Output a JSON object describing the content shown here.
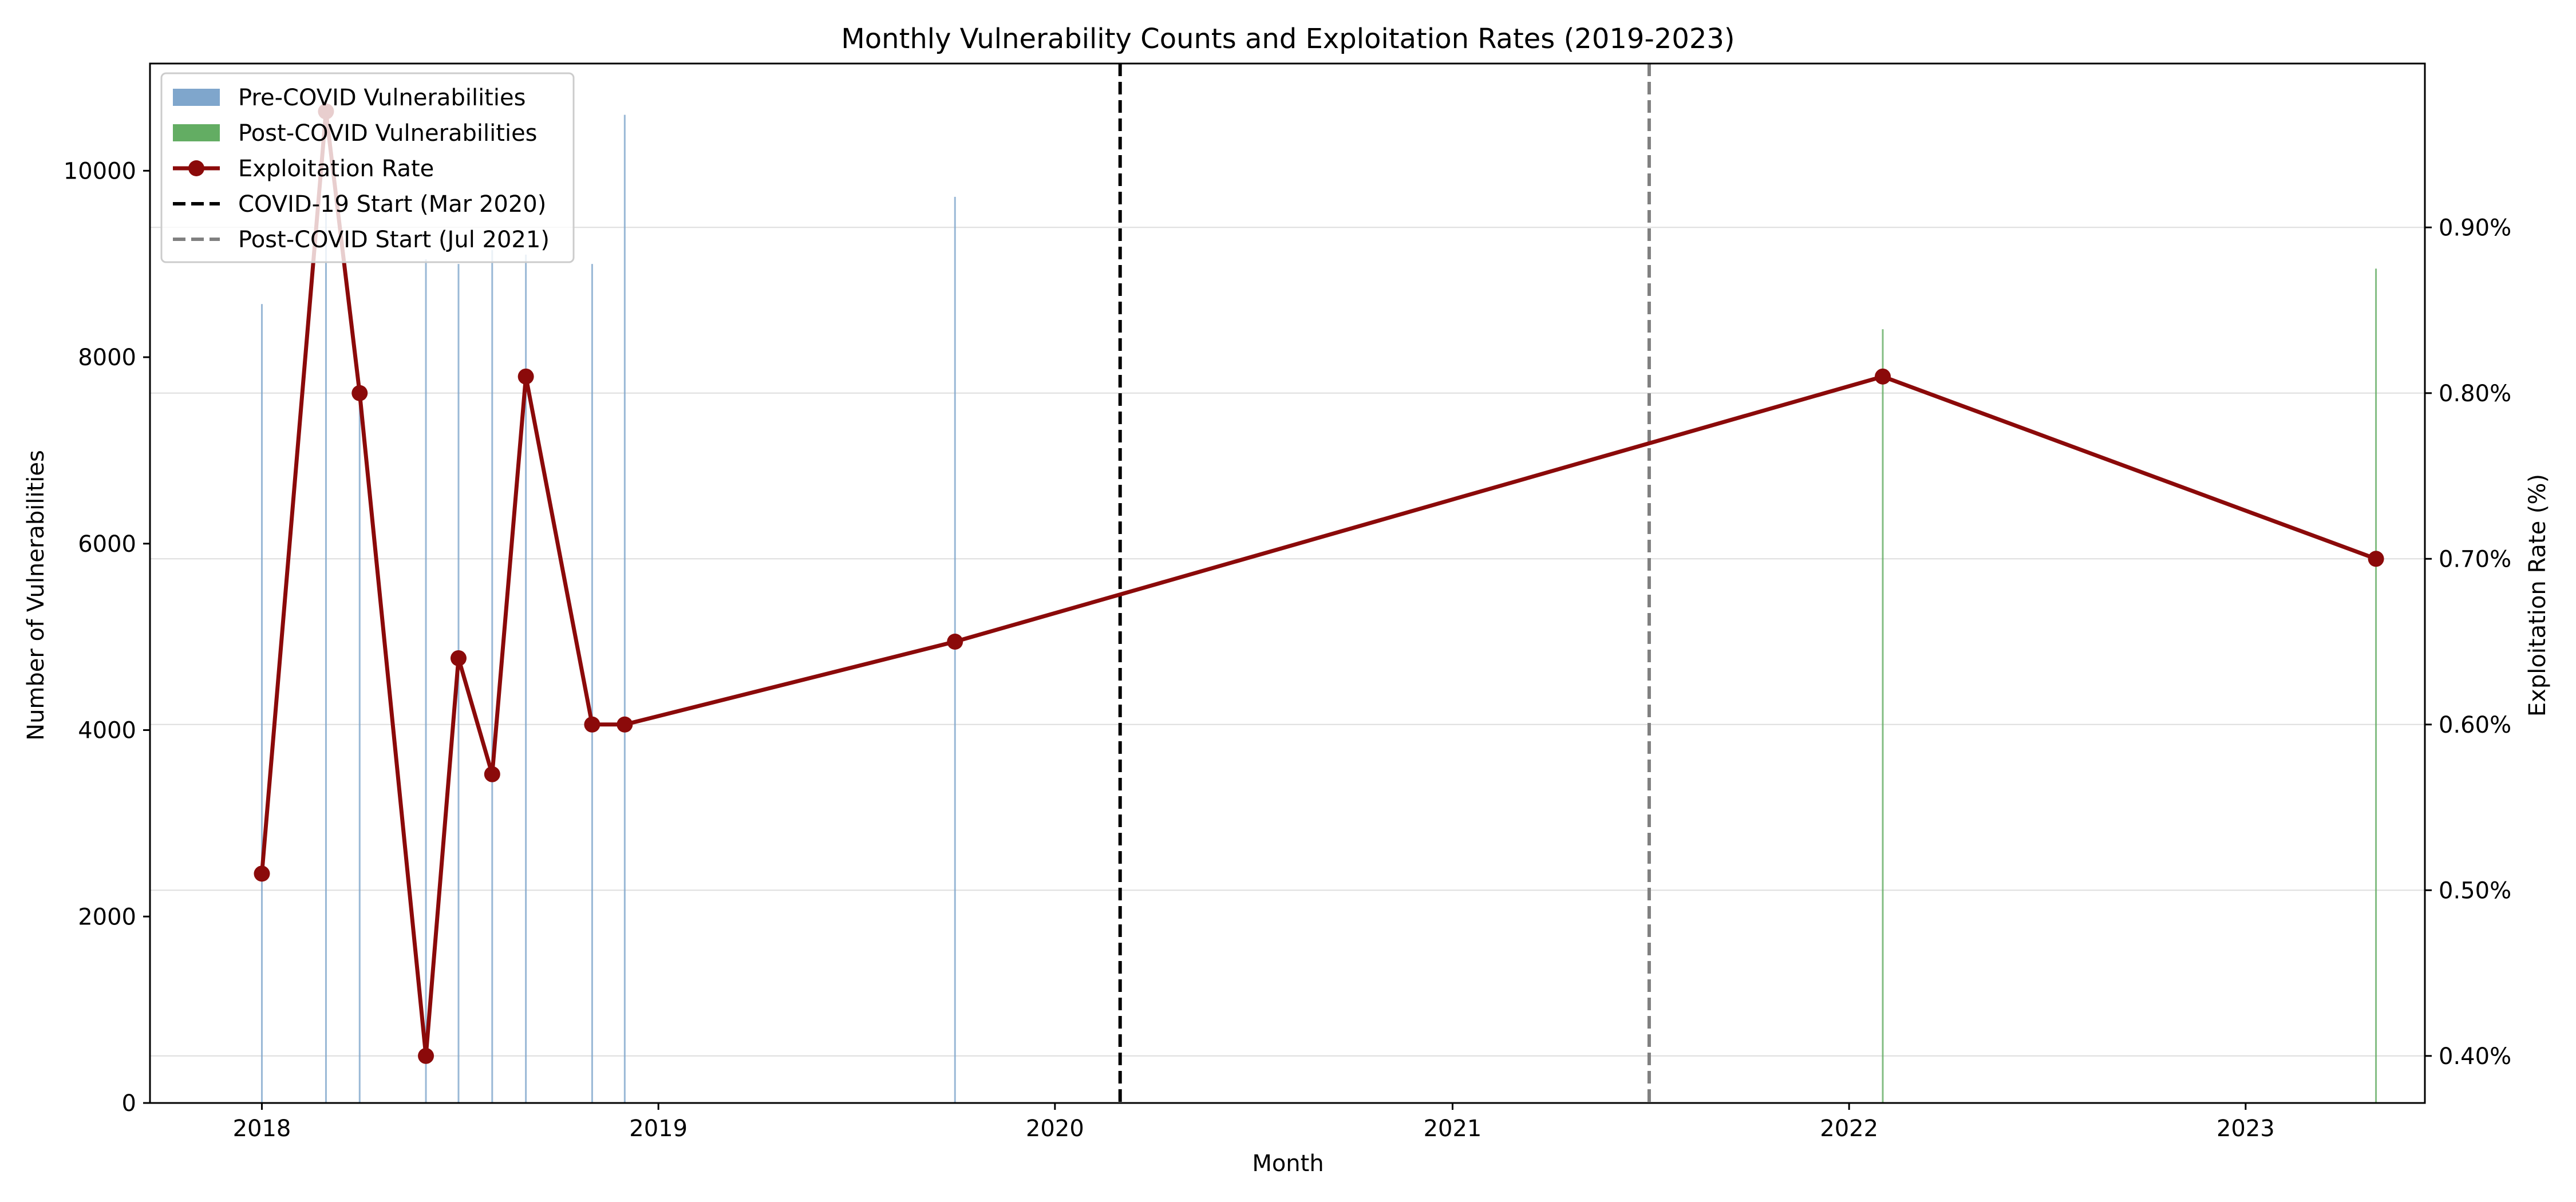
{
  "chart_data": {
    "type": "bar",
    "title": "Monthly Vulnerability Counts and Exploitation Rates (2019-2023)",
    "xlabel": "Month",
    "ylabel": "Number of Vulnerabilities",
    "y2label": "Exploitation Rate (%)",
    "xlim": [
      "2017-09-20",
      "2023-06-15"
    ],
    "ylim": [
      0,
      11150
    ],
    "y2lim": [
      0.3716,
      0.9989
    ],
    "x_ticks": [
      "2018-01-01",
      "2019-01-01",
      "2020-01-01",
      "2021-01-01",
      "2022-01-01",
      "2023-01-01"
    ],
    "x_tick_labels": [
      "2018",
      "2019",
      "2020",
      "2021",
      "2022",
      "2023"
    ],
    "y_ticks": [
      0,
      2000,
      4000,
      6000,
      8000,
      10000
    ],
    "y_tick_labels": [
      "0",
      "2000",
      "4000",
      "6000",
      "8000",
      "10000"
    ],
    "y2_ticks": [
      0.4,
      0.5,
      0.6,
      0.7,
      0.8,
      0.9
    ],
    "y2_tick_labels": [
      "0.40%",
      "0.50%",
      "0.60%",
      "0.70%",
      "0.80%",
      "0.90%"
    ],
    "grid": true,
    "legend_position": "top-left",
    "legend": [
      {
        "label": "Pre-COVID Vulnerabilities",
        "kind": "patch",
        "color": "#7fa6cc"
      },
      {
        "label": "Post-COVID Vulnerabilities",
        "kind": "patch",
        "color": "#63ad63"
      },
      {
        "label": "Exploitation Rate",
        "kind": "line-marker",
        "color": "#8b0a0a"
      },
      {
        "label": "COVID-19 Start (Mar 2020)",
        "kind": "dashed",
        "color": "#000000"
      },
      {
        "label": "Post-COVID Start (Jul 2021)",
        "kind": "dashed",
        "color": "#808080"
      }
    ],
    "series": [
      {
        "name": "Pre-COVID Vulnerabilities",
        "kind": "bar",
        "axis": "left",
        "color": "#7fa6cc",
        "x": [
          "2018-01-01",
          "2018-03-01",
          "2018-04-01",
          "2018-06-01",
          "2018-07-01",
          "2018-08-01",
          "2018-09-01",
          "2018-11-01",
          "2018-12-01",
          "2019-10-01"
        ],
        "values": [
          8570,
          9570,
          7600,
          9050,
          9000,
          9150,
          9100,
          9000,
          10600,
          9720
        ]
      },
      {
        "name": "Post-COVID Vulnerabilities",
        "kind": "bar",
        "axis": "left",
        "color": "#63ad63",
        "x": [
          "2022-02-01",
          "2023-05-01"
        ],
        "values": [
          8300,
          8950
        ]
      },
      {
        "name": "Exploitation Rate",
        "kind": "line",
        "axis": "right",
        "color": "#8b0a0a",
        "x": [
          "2018-01-01",
          "2018-03-01",
          "2018-04-01",
          "2018-06-01",
          "2018-07-01",
          "2018-08-01",
          "2018-09-01",
          "2018-11-01",
          "2018-12-01",
          "2019-10-01",
          "2022-02-01",
          "2023-05-01"
        ],
        "values": [
          0.51,
          0.97,
          0.8,
          0.4,
          0.64,
          0.57,
          0.81,
          0.6,
          0.6,
          0.65,
          0.81,
          0.7
        ]
      }
    ],
    "vlines": [
      {
        "label": "COVID-19 Start (Mar 2020)",
        "x": "2020-03-01",
        "color": "#000000"
      },
      {
        "label": "Post-COVID Start (Jul 2021)",
        "x": "2021-07-01",
        "color": "#808080"
      }
    ]
  }
}
